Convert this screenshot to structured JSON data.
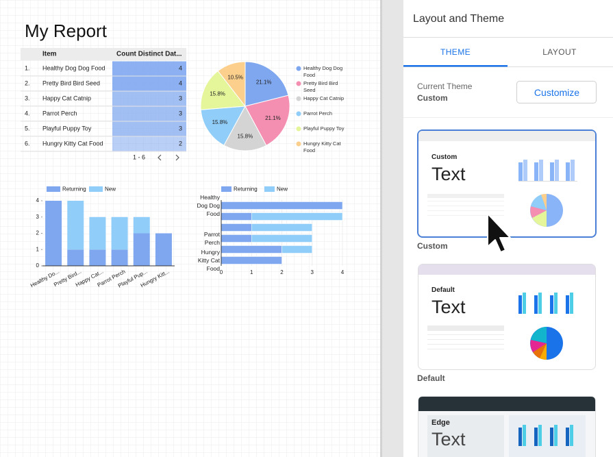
{
  "report": {
    "title": "My Report",
    "table": {
      "columns": [
        "Item",
        "Count Distinct Dat..."
      ],
      "rows": [
        [
          "1.",
          "Healthy Dog Dog Food",
          4
        ],
        [
          "2.",
          "Pretty Bird Bird Seed",
          4
        ],
        [
          "3.",
          "Happy Cat Catnip",
          3
        ],
        [
          "4.",
          "Parrot Perch",
          3
        ],
        [
          "5.",
          "Playful Puppy Toy",
          3
        ],
        [
          "6.",
          "Hungry Kitty Cat Food",
          2
        ]
      ],
      "pagination": "1 - 6"
    },
    "pie": {
      "type": "pie",
      "categories": [
        "Healthy Dog Dog Food",
        "Pretty Bird Bird Seed",
        "Happy Cat Catnip",
        "Parrot Perch",
        "Playful Puppy Toy",
        "Hungry Kitty Cat Food"
      ],
      "values": [
        21.1,
        21.1,
        15.8,
        15.8,
        15.8,
        10.5
      ],
      "value_labels": [
        "21.1%",
        "21.1%",
        "15.8%",
        "15.8%",
        "15.8%",
        "10.5%"
      ],
      "colors": [
        "#7fa7ef",
        "#f48fb1",
        "#d4d4d4",
        "#90cdf8",
        "#e4f59a",
        "#fcd08c"
      ]
    },
    "column_chart": {
      "type": "stacked-column",
      "categories": [
        "Healthy Do...",
        "Pretty Bird...",
        "Happy Cat...",
        "Parrot Perch",
        "Playful Pup...",
        "Hungry Kitt..."
      ],
      "series": [
        {
          "name": "Returning",
          "color": "#7fa7ef",
          "values": [
            4,
            1,
            1,
            1,
            2,
            2
          ]
        },
        {
          "name": "New",
          "color": "#90cdf8",
          "values": [
            0,
            3,
            2,
            2,
            1,
            0
          ]
        }
      ],
      "ylim": [
        0,
        4
      ],
      "yticks": [
        0,
        1,
        2,
        3,
        4
      ]
    },
    "bar_chart": {
      "type": "stacked-bar",
      "categories": [
        "Healthy Dog Dog Food",
        null,
        null,
        "Parrot Perch",
        null,
        "Hungry Kitty Cat Food"
      ],
      "series": [
        {
          "name": "Returning",
          "color": "#7fa7ef",
          "values": [
            4,
            1,
            1,
            1,
            2,
            2
          ]
        },
        {
          "name": "New",
          "color": "#90cdf8",
          "values": [
            0,
            3,
            2,
            2,
            1,
            0
          ]
        }
      ],
      "xlim": [
        0,
        4
      ],
      "xticks": [
        0,
        1,
        2,
        3,
        4
      ]
    }
  },
  "panel": {
    "title": "Layout and Theme",
    "tabs": [
      "THEME",
      "LAYOUT"
    ],
    "current_theme_label": "Current Theme",
    "current_theme": "Custom",
    "button": "Customize",
    "themes": [
      {
        "card_title": "Custom",
        "card_text": "Text",
        "label": "Custom"
      },
      {
        "card_title": "Default",
        "card_text": "Text",
        "label": "Default"
      },
      {
        "card_title": "Edge",
        "card_text": "Text"
      }
    ]
  }
}
